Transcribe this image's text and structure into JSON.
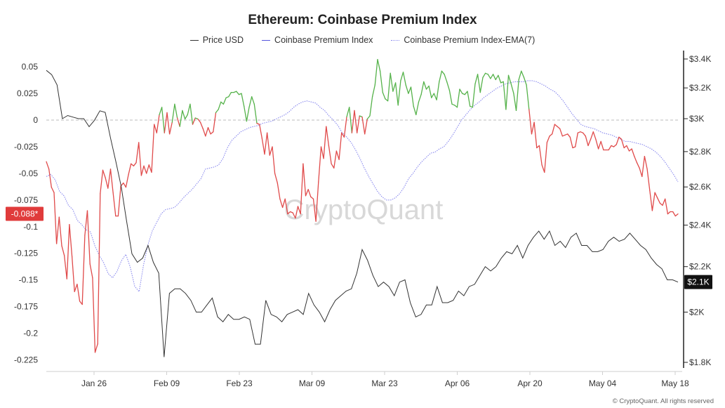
{
  "chart_data": {
    "type": "line",
    "title": "Ethereum: Coinbase Premium Index",
    "legend": [
      {
        "name": "Price USD",
        "color": "#333333",
        "style": "solid"
      },
      {
        "name": "Coinbase Premium Index",
        "color": "#5555dd",
        "style": "solid"
      },
      {
        "name": "Coinbase Premium Index-EMA(7)",
        "color": "#8a8aee",
        "style": "dotted"
      }
    ],
    "x_tick_labels": [
      "Jan 26",
      "Feb 09",
      "Feb 23",
      "Mar 09",
      "Mar 23",
      "Apr 06",
      "Apr 20",
      "May 04",
      "May 18"
    ],
    "y_left": {
      "ticks": [
        "0.05",
        "0.025",
        "0",
        "-0.025",
        "-0.05",
        "-0.075",
        "-0.1",
        "-0.125",
        "-0.15",
        "-0.175",
        "-0.2",
        "-0.225"
      ],
      "range": [
        -0.228,
        0.062
      ]
    },
    "y_right": {
      "ticks": [
        "$3.4K",
        "$3.2K",
        "$3K",
        "$2.8K",
        "$2.6K",
        "$2.4K",
        "$2.2K",
        "$2K",
        "$1.8K"
      ],
      "range": [
        1.78,
        3.42
      ],
      "scale": "log"
    },
    "positive_color": "#55b24a",
    "negative_color": "#e04a4a",
    "premium_marker_label": "-0.088*",
    "price_marker_label": "$2.1K",
    "series": [
      {
        "name": "Coinbase Premium Index",
        "values": [
          -0.039,
          -0.046,
          -0.063,
          -0.068,
          -0.116,
          -0.091,
          -0.118,
          -0.127,
          -0.149,
          -0.098,
          -0.128,
          -0.161,
          -0.154,
          -0.17,
          -0.173,
          -0.108,
          -0.085,
          -0.135,
          -0.148,
          -0.218,
          -0.21,
          -0.069,
          -0.047,
          -0.054,
          -0.064,
          -0.046,
          -0.068,
          -0.09,
          -0.09,
          -0.062,
          -0.059,
          -0.063,
          -0.051,
          -0.041,
          -0.043,
          -0.04,
          -0.021,
          -0.052,
          -0.043,
          -0.05,
          -0.042,
          -0.049,
          -0.004,
          -0.012,
          0.005,
          0.012,
          -0.012,
          0.007,
          -0.013,
          -0.002,
          0.015,
          0.002,
          -0.006,
          0.009,
          0.001,
          0.005,
          0.015,
          -0.004,
          0.002,
          0.001,
          -0.002,
          -0.008,
          -0.015,
          -0.007,
          -0.013,
          -0.011,
          0.007,
          0.01,
          0.017,
          0.015,
          0.021,
          0.022,
          0.026,
          0.026,
          0.027,
          0.024,
          0.025,
          0.013,
          -0.001,
          0.012,
          0.022,
          0.015,
          -0.003,
          -0.004,
          -0.017,
          -0.032,
          -0.012,
          -0.033,
          -0.025,
          -0.05,
          -0.059,
          -0.074,
          -0.082,
          -0.074,
          -0.088,
          -0.086,
          -0.087,
          -0.092,
          -0.081,
          -0.088,
          -0.041,
          -0.071,
          -0.065,
          -0.072,
          -0.074,
          -0.095,
          -0.058,
          -0.025,
          -0.036,
          -0.006,
          -0.024,
          -0.041,
          -0.045,
          -0.029,
          -0.037,
          -0.012,
          -0.016,
          0.003,
          0.012,
          -0.012,
          0.009,
          -0.012,
          0.004,
          0.003,
          -0.013,
          0.001,
          0.004,
          0.022,
          0.033,
          0.057,
          0.046,
          0.026,
          0.02,
          0.018,
          0.044,
          0.027,
          0.035,
          0.014,
          0.037,
          0.045,
          0.033,
          0.025,
          0.031,
          0.013,
          0.005,
          0.017,
          0.024,
          0.036,
          0.029,
          0.032,
          0.021,
          0.025,
          0.019,
          0.036,
          0.046,
          0.043,
          0.036,
          0.028,
          0.015,
          0.014,
          0.012,
          0.029,
          0.025,
          0.024,
          0.027,
          0.013,
          0.012,
          0.034,
          0.043,
          0.026,
          0.04,
          0.044,
          0.043,
          0.039,
          0.043,
          0.038,
          0.042,
          0.035,
          0.036,
          0.01,
          0.042,
          0.034,
          0.025,
          0.009,
          0.038,
          0.046,
          0.04,
          0.033,
          0.01,
          -0.013,
          -0.002,
          -0.026,
          -0.024,
          -0.042,
          -0.049,
          -0.021,
          -0.015,
          -0.013,
          -0.004,
          -0.006,
          -0.008,
          -0.015,
          -0.014,
          -0.013,
          -0.016,
          -0.026,
          -0.025,
          -0.012,
          -0.011,
          -0.012,
          -0.015,
          -0.024,
          -0.018,
          -0.011,
          -0.018,
          -0.027,
          -0.02,
          -0.028,
          -0.028,
          -0.028,
          -0.024,
          -0.025,
          -0.023,
          -0.016,
          -0.018,
          -0.026,
          -0.024,
          -0.029,
          -0.027,
          -0.034,
          -0.04,
          -0.045,
          -0.053,
          -0.034,
          -0.046,
          -0.066,
          -0.085,
          -0.068,
          -0.073,
          -0.078,
          -0.08,
          -0.074,
          -0.088,
          -0.086,
          -0.086,
          -0.09,
          -0.088
        ]
      },
      {
        "name": "Coinbase Premium Index-EMA(7)",
        "values": [
          -0.053,
          -0.051,
          -0.056,
          -0.067,
          -0.071,
          -0.08,
          -0.084,
          -0.094,
          -0.098,
          -0.103,
          -0.105,
          -0.118,
          -0.127,
          -0.134,
          -0.144,
          -0.148,
          -0.142,
          -0.132,
          -0.126,
          -0.138,
          -0.156,
          -0.161,
          -0.136,
          -0.117,
          -0.104,
          -0.096,
          -0.088,
          -0.084,
          -0.083,
          -0.082,
          -0.078,
          -0.073,
          -0.069,
          -0.065,
          -0.06,
          -0.055,
          -0.046,
          -0.045,
          -0.044,
          -0.042,
          -0.036,
          -0.026,
          -0.019,
          -0.015,
          -0.011,
          -0.009,
          -0.007,
          -0.006,
          -0.005,
          -0.003,
          -0.002,
          -0.001,
          0.001,
          0.003,
          0.005,
          0.008,
          0.012,
          0.015,
          0.017,
          0.018,
          0.017,
          0.016,
          0.012,
          0.009,
          0.004,
          0.0,
          -0.005,
          -0.012,
          -0.016,
          -0.021,
          -0.028,
          -0.036,
          -0.045,
          -0.053,
          -0.06,
          -0.067,
          -0.072,
          -0.075,
          -0.075,
          -0.073,
          -0.069,
          -0.063,
          -0.055,
          -0.05,
          -0.044,
          -0.039,
          -0.035,
          -0.031,
          -0.03,
          -0.027,
          -0.025,
          -0.02,
          -0.014,
          -0.007,
          0.0,
          0.005,
          0.01,
          0.014,
          0.017,
          0.021,
          0.024,
          0.027,
          0.03,
          0.032,
          0.034,
          0.035,
          0.036,
          0.036,
          0.036,
          0.037,
          0.037,
          0.036,
          0.034,
          0.032,
          0.029,
          0.027,
          0.023,
          0.018,
          0.012,
          0.006,
          0.001,
          -0.004,
          -0.006,
          -0.007,
          -0.008,
          -0.01,
          -0.012,
          -0.013,
          -0.014,
          -0.016,
          -0.018,
          -0.02,
          -0.02,
          -0.021,
          -0.022,
          -0.023,
          -0.025,
          -0.027,
          -0.03,
          -0.034,
          -0.039,
          -0.045,
          -0.051,
          -0.058
        ]
      },
      {
        "name": "Price USD",
        "unit": "$K",
        "values": [
          3.32,
          3.29,
          3.22,
          3.0,
          3.02,
          3.01,
          3.0,
          3.0,
          2.95,
          2.99,
          3.05,
          3.04,
          2.88,
          2.74,
          2.6,
          2.42,
          2.26,
          2.22,
          2.24,
          2.3,
          2.22,
          2.17,
          1.82,
          2.08,
          2.1,
          2.1,
          2.08,
          2.05,
          2.0,
          2.0,
          2.03,
          2.06,
          1.98,
          1.96,
          1.99,
          1.97,
          1.97,
          1.98,
          1.97,
          1.87,
          1.87,
          2.05,
          1.99,
          1.98,
          1.96,
          1.99,
          2.0,
          2.01,
          1.99,
          2.08,
          2.03,
          2.0,
          1.96,
          2.01,
          2.05,
          2.07,
          2.09,
          2.1,
          2.17,
          2.28,
          2.23,
          2.16,
          2.11,
          2.13,
          2.11,
          2.07,
          2.13,
          2.14,
          2.04,
          1.98,
          1.99,
          2.03,
          2.03,
          2.11,
          2.04,
          2.04,
          2.05,
          2.09,
          2.07,
          2.11,
          2.12,
          2.16,
          2.2,
          2.18,
          2.2,
          2.24,
          2.27,
          2.26,
          2.3,
          2.24,
          2.3,
          2.34,
          2.37,
          2.33,
          2.37,
          2.3,
          2.32,
          2.29,
          2.34,
          2.36,
          2.3,
          2.3,
          2.27,
          2.27,
          2.28,
          2.32,
          2.34,
          2.32,
          2.33,
          2.36,
          2.33,
          2.3,
          2.28,
          2.24,
          2.21,
          2.19,
          2.14,
          2.14,
          2.13
        ]
      }
    ]
  },
  "credit": "© CryptoQuant. All rights reserved",
  "watermark": "CryptoQuant"
}
